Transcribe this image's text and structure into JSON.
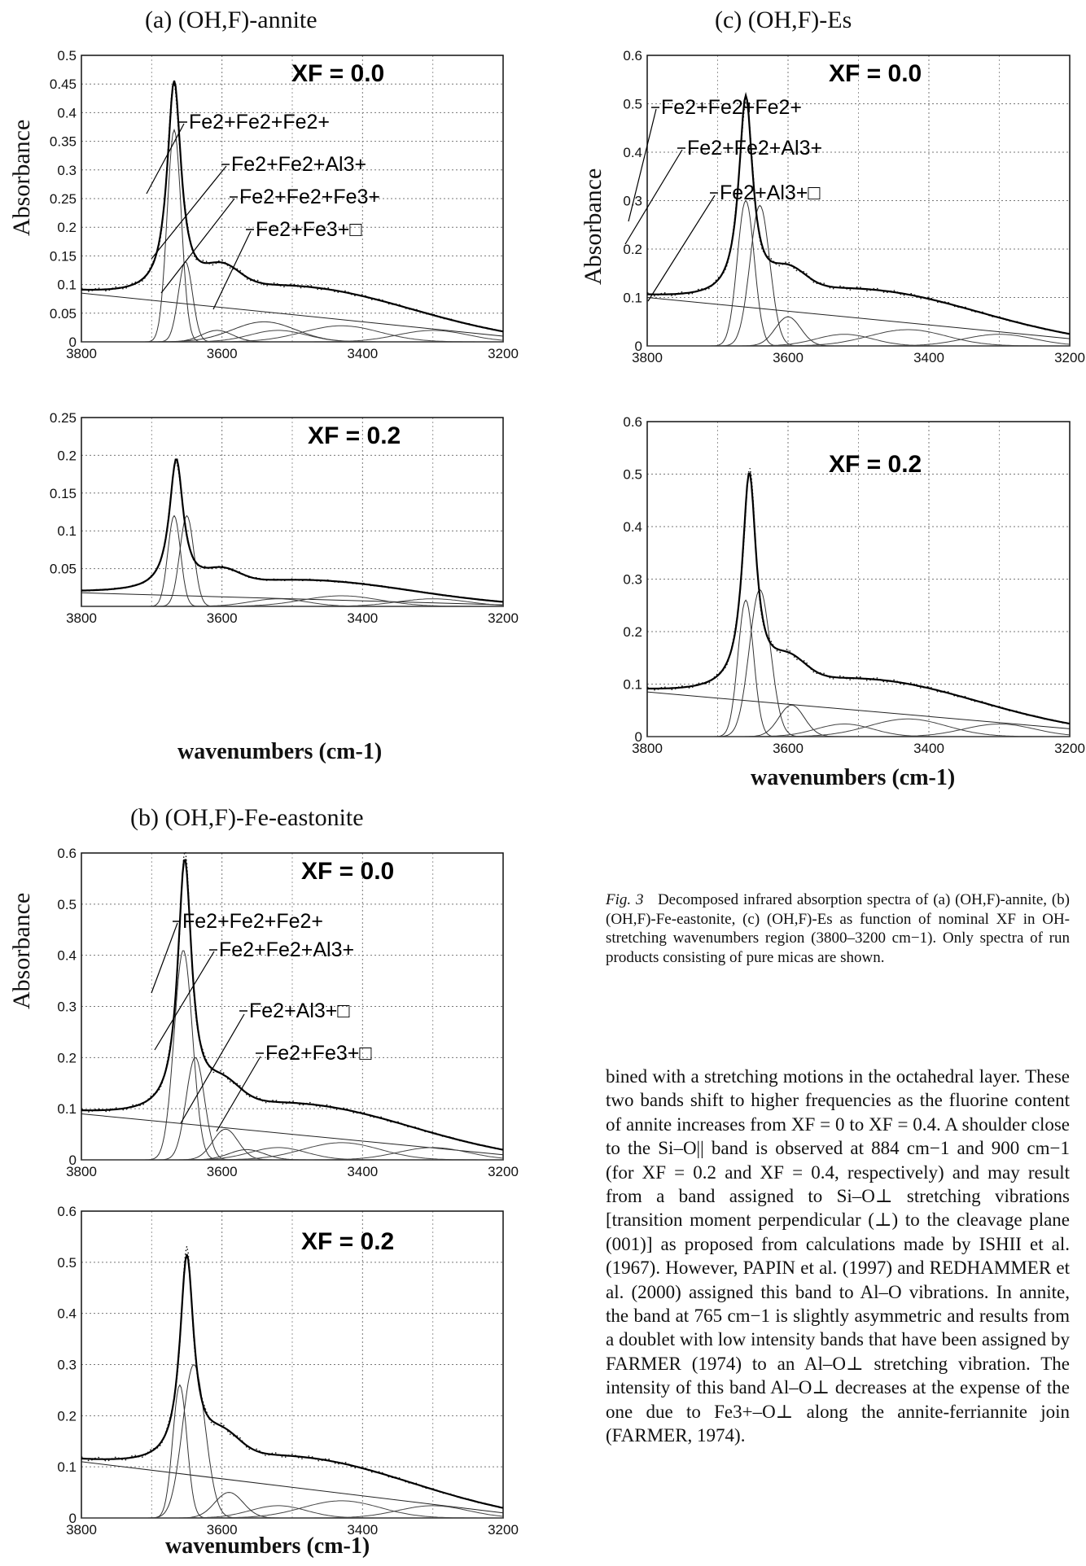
{
  "panel_titles": {
    "a": "(a) (OH,F)-annite",
    "b": "(b) (OH,F)-Fe-eastonite",
    "c": "(c) (OH,F)-Es"
  },
  "axis_label": {
    "y": "Absorbance",
    "x": "wavenumbers (cm-1)"
  },
  "xf_labels": {
    "x00": "XF = 0.0",
    "x02": "XF = 0.2"
  },
  "band_labels": {
    "fe2fe2fe2": "Fe2+Fe2+Fe2+",
    "fe2fe2al3": "Fe2+Fe2+Al3+",
    "fe2fe2fe3": "Fe2+Fe2+Fe3+",
    "fe2fe3v": "Fe2+Fe3+□",
    "fe2al3v": "Fe2+Al3+□"
  },
  "caption": {
    "label": "Fig. 3",
    "text": "Decomposed infrared absorption spectra of (a) (OH,F)-annite, (b) (OH,F)-Fe-eastonite, (c) (OH,F)-Es as function of nominal XF in OH-stretching wavenumbers region (3800–3200 cm−1). Only spectra of run products consisting of pure micas are shown."
  },
  "body_text": "bined with a stretching motions in the octahedral layer. These two bands shift to higher frequencies as the fluorine content of annite increases from XF = 0 to XF = 0.4. A shoulder close to the Si–O|| band is observed at 884 cm−1 and 900 cm−1 (for XF = 0.2 and XF = 0.4, respectively) and may result from a band assigned to Si–O⊥ stretching vibrations [transition moment perpendicular (⊥) to the cleavage plane (001)] as proposed from calculations made by ISHII et al. (1967). However, PAPIN et al. (1997) and REDHAMMER et al. (2000) assigned this band to Al–O vibrations. In annite, the band at 765 cm−1 is slightly asymmetric and results from a doublet with low intensity bands that have been assigned by FARMER (1974) to an Al–O⊥ stretching vibration. The intensity of this band Al–O⊥ decreases at the expense of the one due to Fe3+–O⊥ along the annite-ferriannite join (FARMER, 1974).",
  "chart_data": [
    {
      "id": "a_xf00",
      "type": "line",
      "title": "(a) (OH,F)-annite",
      "annotation": "XF = 0.0",
      "ylabel": "Absorbance",
      "xlim": [
        3800,
        3200
      ],
      "ylim": [
        0,
        0.5
      ],
      "x_ticks": [
        3800,
        3600,
        3400,
        3200
      ],
      "y_ticks": [
        0,
        0.05,
        0.1,
        0.15,
        0.2,
        0.25,
        0.3,
        0.35,
        0.4,
        0.45,
        0.5
      ],
      "grid": true,
      "baseline": [
        [
          3800,
          0.085
        ],
        [
          3200,
          0.01
        ]
      ],
      "spectrum_peak": {
        "x": 3668,
        "y": 0.455
      },
      "bands": [
        {
          "label": "Fe2+Fe2+Fe2+",
          "center": 3668,
          "height": 0.37,
          "width": 10
        },
        {
          "label": "Fe2+Fe2+Al3+",
          "center": 3652,
          "height": 0.14,
          "width": 10
        },
        {
          "label": "Fe2+Fe2+Fe3+",
          "center": 3607,
          "height": 0.02,
          "width": 22
        },
        {
          "label": "Fe2+Fe3+□",
          "center": 3540,
          "height": 0.035,
          "width": 45
        }
      ]
    },
    {
      "id": "a_xf02",
      "type": "line",
      "annotation": "XF = 0.2",
      "xlabel": "wavenumbers (cm-1)",
      "xlim": [
        3800,
        3200
      ],
      "ylim": [
        0,
        0.25
      ],
      "x_ticks": [
        3800,
        3600,
        3400,
        3200
      ],
      "y_ticks": [
        0.05,
        0.1,
        0.15,
        0.2,
        0.25
      ],
      "grid": true,
      "baseline": [
        [
          3800,
          0.018
        ],
        [
          3200,
          0.002
        ]
      ],
      "spectrum_peak": {
        "x": 3665,
        "y": 0.195
      },
      "bands": [
        {
          "center": 3668,
          "height": 0.12,
          "width": 9
        },
        {
          "center": 3650,
          "height": 0.12,
          "width": 10
        }
      ]
    },
    {
      "id": "b_xf00",
      "type": "line",
      "title": "(b) (OH,F)-Fe-eastonite",
      "annotation": "XF = 0.0",
      "ylabel": "Absorbance",
      "xlim": [
        3800,
        3200
      ],
      "ylim": [
        0,
        0.6
      ],
      "x_ticks": [
        3800,
        3600,
        3400,
        3200
      ],
      "y_ticks": [
        0,
        0.1,
        0.2,
        0.3,
        0.4,
        0.5,
        0.6
      ],
      "grid": true,
      "baseline": [
        [
          3800,
          0.09
        ],
        [
          3200,
          0.01
        ]
      ],
      "spectrum_peak": {
        "x": 3653,
        "y": 0.585
      },
      "bands": [
        {
          "label": "Fe2+Fe2+Fe2+",
          "center": 3655,
          "height": 0.41,
          "width": 13
        },
        {
          "label": "Fe2+Fe2+Al3+",
          "center": 3638,
          "height": 0.2,
          "width": 13
        },
        {
          "label": "Fe2+Al3+□",
          "center": 3595,
          "height": 0.06,
          "width": 18
        },
        {
          "label": "Fe2+Fe3+□",
          "center": 3565,
          "height": 0.02,
          "width": 25
        }
      ]
    },
    {
      "id": "b_xf02",
      "type": "line",
      "annotation": "XF = 0.2",
      "xlabel": "wavenumbers (cm-1)",
      "xlim": [
        3800,
        3200
      ],
      "ylim": [
        0,
        0.6
      ],
      "x_ticks": [
        3800,
        3600,
        3400,
        3200
      ],
      "y_ticks": [
        0,
        0.1,
        0.2,
        0.3,
        0.4,
        0.5,
        0.6
      ],
      "grid": true,
      "baseline": [
        [
          3800,
          0.11
        ],
        [
          3200,
          0.01
        ]
      ],
      "spectrum_peak": {
        "x": 3650,
        "y": 0.51
      },
      "bands": [
        {
          "center": 3660,
          "height": 0.26,
          "width": 10
        },
        {
          "center": 3640,
          "height": 0.3,
          "width": 16
        },
        {
          "center": 3590,
          "height": 0.05,
          "width": 20
        }
      ]
    },
    {
      "id": "c_xf00",
      "type": "line",
      "title": "(c) (OH,F)-Es",
      "annotation": "XF = 0.0",
      "ylabel": "Absorbance",
      "xlim": [
        3800,
        3200
      ],
      "ylim": [
        0,
        0.6
      ],
      "x_ticks": [
        3800,
        3600,
        3400,
        3200
      ],
      "y_ticks": [
        0,
        0.1,
        0.2,
        0.3,
        0.4,
        0.5,
        0.6
      ],
      "grid": true,
      "baseline": [
        [
          3800,
          0.1
        ],
        [
          3200,
          0.015
        ]
      ],
      "spectrum_peak": {
        "x": 3660,
        "y": 0.515
      },
      "bands": [
        {
          "label": "Fe2+Fe2+Fe2+",
          "center": 3660,
          "height": 0.3,
          "width": 12
        },
        {
          "label": "Fe2+Fe2+Al3+",
          "center": 3640,
          "height": 0.29,
          "width": 14
        },
        {
          "label": "Fe2+Al3+□",
          "center": 3600,
          "height": 0.06,
          "width": 18
        }
      ]
    },
    {
      "id": "c_xf02",
      "type": "line",
      "annotation": "XF = 0.2",
      "xlabel": "wavenumbers (cm-1)",
      "xlim": [
        3800,
        3200
      ],
      "ylim": [
        0,
        0.6
      ],
      "x_ticks": [
        3800,
        3600,
        3400,
        3200
      ],
      "y_ticks": [
        0,
        0.1,
        0.2,
        0.3,
        0.4,
        0.5,
        0.6
      ],
      "grid": true,
      "baseline": [
        [
          3800,
          0.085
        ],
        [
          3200,
          0.015
        ]
      ],
      "spectrum_peak": {
        "x": 3655,
        "y": 0.5
      },
      "bands": [
        {
          "center": 3660,
          "height": 0.26,
          "width": 11
        },
        {
          "center": 3640,
          "height": 0.28,
          "width": 15
        },
        {
          "center": 3595,
          "height": 0.06,
          "width": 18
        }
      ]
    }
  ]
}
